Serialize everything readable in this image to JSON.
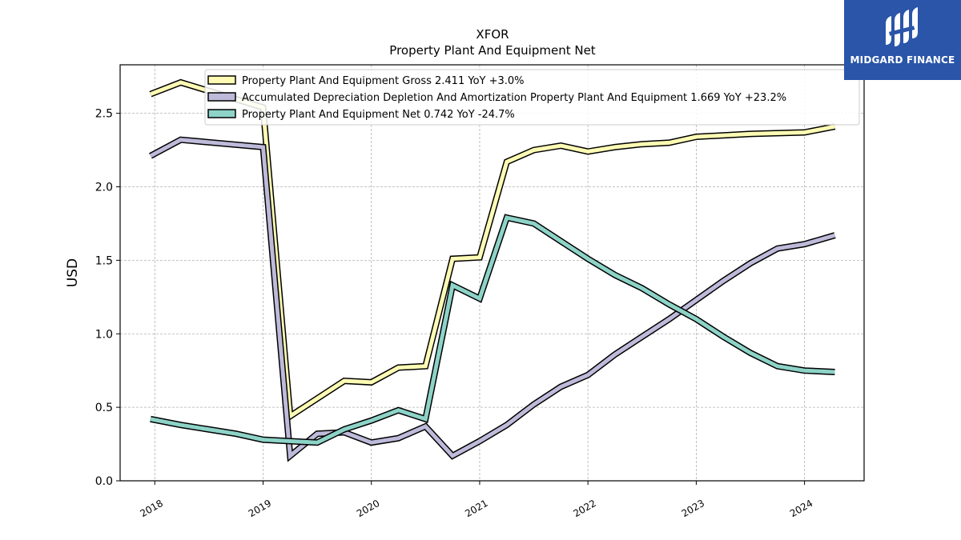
{
  "brand": {
    "name": "MIDGARD FINANCE",
    "bg_color": "#2a55a8"
  },
  "chart_data": {
    "type": "line",
    "title": "XFOR",
    "subtitle": "Property Plant And Equipment Net",
    "ylabel": "USD",
    "xlabel": "",
    "ylim": [
      0,
      2.83
    ],
    "xlim": [
      2017.68,
      2024.55
    ],
    "yticks": [
      0.0,
      0.5,
      1.0,
      1.5,
      2.0,
      2.5
    ],
    "ytick_labels": [
      "0.0",
      "0.5",
      "1.0",
      "1.5",
      "2.0",
      "2.5"
    ],
    "xticks": [
      2018,
      2019,
      2020,
      2021,
      2022,
      2023,
      2024
    ],
    "xtick_labels": [
      "2018",
      "2019",
      "2020",
      "2021",
      "2022",
      "2023",
      "2024"
    ],
    "grid": true,
    "legend_position": "top",
    "series": [
      {
        "name": "Property Plant And Equipment Gross",
        "legend_label": "Property Plant And Equipment Gross  2.411 YoY +3.0%",
        "color": "#fdfbb4",
        "x": [
          2017.96,
          2018.24,
          2019.0,
          2019.25,
          2019.75,
          2020.0,
          2020.25,
          2020.5,
          2020.75,
          2021.0,
          2021.25,
          2021.5,
          2021.75,
          2022.0,
          2022.25,
          2022.5,
          2022.75,
          2023.0,
          2023.5,
          2024.0,
          2024.28
        ],
        "values": [
          2.63,
          2.71,
          2.54,
          0.44,
          0.68,
          0.67,
          0.77,
          0.78,
          1.51,
          1.52,
          2.17,
          2.25,
          2.28,
          2.24,
          2.27,
          2.29,
          2.3,
          2.34,
          2.36,
          2.37,
          2.41
        ]
      },
      {
        "name": "Accumulated Depreciation Depletion And Amortization Property Plant And Equipment",
        "legend_label": "Accumulated Depreciation Depletion And Amortization Property Plant And Equipment  1.669 YoY +23.2%",
        "color": "#bebada",
        "x": [
          2017.96,
          2018.24,
          2019.0,
          2019.25,
          2019.5,
          2019.75,
          2020.0,
          2020.25,
          2020.5,
          2020.75,
          2021.0,
          2021.25,
          2021.5,
          2021.75,
          2022.0,
          2022.25,
          2022.5,
          2022.75,
          2023.0,
          2023.25,
          2023.5,
          2023.75,
          2024.0,
          2024.28
        ],
        "values": [
          2.21,
          2.32,
          2.27,
          0.17,
          0.32,
          0.33,
          0.26,
          0.29,
          0.37,
          0.17,
          0.27,
          0.38,
          0.52,
          0.64,
          0.72,
          0.86,
          0.98,
          1.1,
          1.23,
          1.36,
          1.48,
          1.58,
          1.61,
          1.67
        ]
      },
      {
        "name": "Property Plant And Equipment Net",
        "legend_label": "Property Plant And Equipment Net  0.742 YoY -24.7%",
        "color": "#8dd3c7",
        "x": [
          2017.96,
          2018.24,
          2018.75,
          2019.0,
          2019.5,
          2019.75,
          2020.0,
          2020.25,
          2020.5,
          2020.75,
          2021.0,
          2021.25,
          2021.5,
          2021.75,
          2022.0,
          2022.25,
          2022.5,
          2022.75,
          2023.0,
          2023.25,
          2023.5,
          2023.75,
          2024.0,
          2024.28
        ],
        "values": [
          0.42,
          0.38,
          0.32,
          0.28,
          0.26,
          0.35,
          0.41,
          0.48,
          0.42,
          1.33,
          1.24,
          1.79,
          1.75,
          1.63,
          1.51,
          1.4,
          1.31,
          1.2,
          1.1,
          0.98,
          0.87,
          0.78,
          0.75,
          0.74
        ]
      }
    ]
  }
}
